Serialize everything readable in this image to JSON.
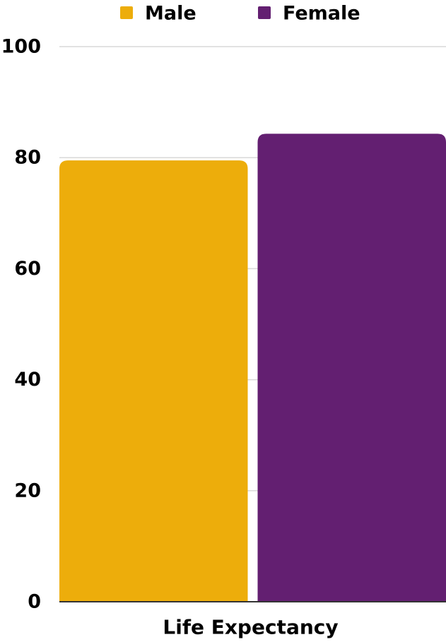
{
  "chart_data": {
    "type": "bar",
    "categories": [
      "Life Expectancy"
    ],
    "series": [
      {
        "name": "Male",
        "values": [
          79.5
        ],
        "color": "#EDAD0B"
      },
      {
        "name": "Female",
        "values": [
          84.3
        ],
        "color": "#631F71"
      }
    ],
    "ylim": [
      0,
      100
    ],
    "yticks": [
      "0",
      "20",
      "40",
      "60",
      "80",
      "100"
    ],
    "legend_position": "top",
    "grid": true
  }
}
